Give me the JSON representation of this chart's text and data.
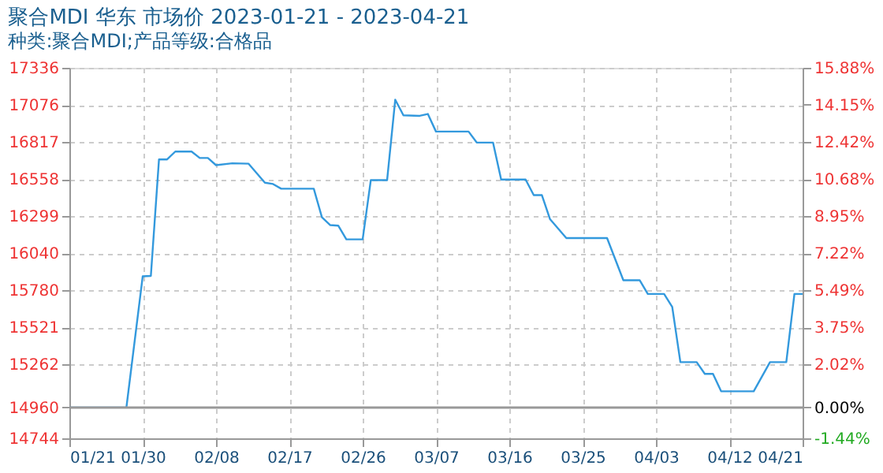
{
  "chart_data": {
    "type": "line",
    "title": "聚合MDI 华东 市场价 2023-01-21 - 2023-04-21",
    "subtitle": "种类:聚合MDI;产品等级:合格品",
    "x": [
      "2023-01-21",
      "2023-01-28",
      "2023-01-30",
      "2023-01-31",
      "2023-02-01",
      "2023-02-02",
      "2023-02-03",
      "2023-02-05",
      "2023-02-06",
      "2023-02-07",
      "2023-02-08",
      "2023-02-10",
      "2023-02-12",
      "2023-02-14",
      "2023-02-15",
      "2023-02-16",
      "2023-02-20",
      "2023-02-21",
      "2023-02-22",
      "2023-02-23",
      "2023-02-24",
      "2023-02-26",
      "2023-02-27",
      "2023-03-01",
      "2023-03-02",
      "2023-03-03",
      "2023-03-05",
      "2023-03-06",
      "2023-03-07",
      "2023-03-11",
      "2023-03-12",
      "2023-03-14",
      "2023-03-15",
      "2023-03-18",
      "2023-03-19",
      "2023-03-20",
      "2023-03-21",
      "2023-03-23",
      "2023-03-28",
      "2023-03-30",
      "2023-04-01",
      "2023-04-02",
      "2023-04-04",
      "2023-04-05",
      "2023-04-06",
      "2023-04-08",
      "2023-04-09",
      "2023-04-10",
      "2023-04-11",
      "2023-04-15",
      "2023-04-17",
      "2023-04-19",
      "2023-04-20",
      "2023-04-21"
    ],
    "series": [
      {
        "color": "#3399dd",
        "values": [
          14960,
          14960,
          15877,
          15880,
          16695,
          16695,
          16750,
          16750,
          16705,
          16705,
          16655,
          16668,
          16665,
          16532,
          16523,
          16490,
          16490,
          16290,
          16236,
          16232,
          16136,
          16136,
          16550,
          16550,
          17113,
          17004,
          17000,
          17013,
          16890,
          16890,
          16813,
          16813,
          16554,
          16554,
          16445,
          16445,
          16277,
          16145,
          16145,
          15850,
          15850,
          15754,
          15754,
          15663,
          15277,
          15277,
          15195,
          15195,
          15073,
          15073,
          15277,
          15277,
          15754,
          15754
        ]
      }
    ],
    "xlim": [
      "2023-01-21",
      "2023-04-21"
    ],
    "xticks": [
      {
        "value": "2023-01-21",
        "label": "01/21"
      },
      {
        "value": "2023-01-30",
        "label": "01/30"
      },
      {
        "value": "2023-02-08",
        "label": "02/08"
      },
      {
        "value": "2023-02-17",
        "label": "02/17"
      },
      {
        "value": "2023-02-26",
        "label": "02/26"
      },
      {
        "value": "2023-03-07",
        "label": "03/07"
      },
      {
        "value": "2023-03-16",
        "label": "03/16"
      },
      {
        "value": "2023-03-25",
        "label": "03/25"
      },
      {
        "value": "2023-04-03",
        "label": "04/03"
      },
      {
        "value": "2023-04-12",
        "label": "04/12"
      },
      {
        "value": "2023-04-21",
        "label": "04/21"
      }
    ],
    "ylim": [
      14744,
      17336
    ],
    "yticks": [
      14744,
      14960,
      15262,
      15521,
      15780,
      16040,
      16299,
      16558,
      16817,
      17076,
      17336
    ],
    "y2lim": [
      -1.44,
      15.88
    ],
    "y2ticks": [
      {
        "value": -1.44,
        "label": "-1.44%"
      },
      {
        "value": 0,
        "label": "0.00%"
      },
      {
        "value": 2.02,
        "label": "2.02%"
      },
      {
        "value": 3.75,
        "label": "3.75%"
      },
      {
        "value": 5.49,
        "label": "5.49%"
      },
      {
        "value": 7.22,
        "label": "7.22%"
      },
      {
        "value": 8.95,
        "label": "8.95%"
      },
      {
        "value": 10.68,
        "label": "10.68%"
      },
      {
        "value": 12.42,
        "label": "12.42%"
      },
      {
        "value": 14.15,
        "label": "14.15%"
      },
      {
        "value": 15.88,
        "label": "15.88%"
      }
    ],
    "ref_lines": [
      {
        "axis": "y2",
        "value": 0,
        "color": "#999999",
        "line_style": "solid"
      }
    ],
    "grid": true,
    "marker": "none",
    "line_style": "solid"
  }
}
